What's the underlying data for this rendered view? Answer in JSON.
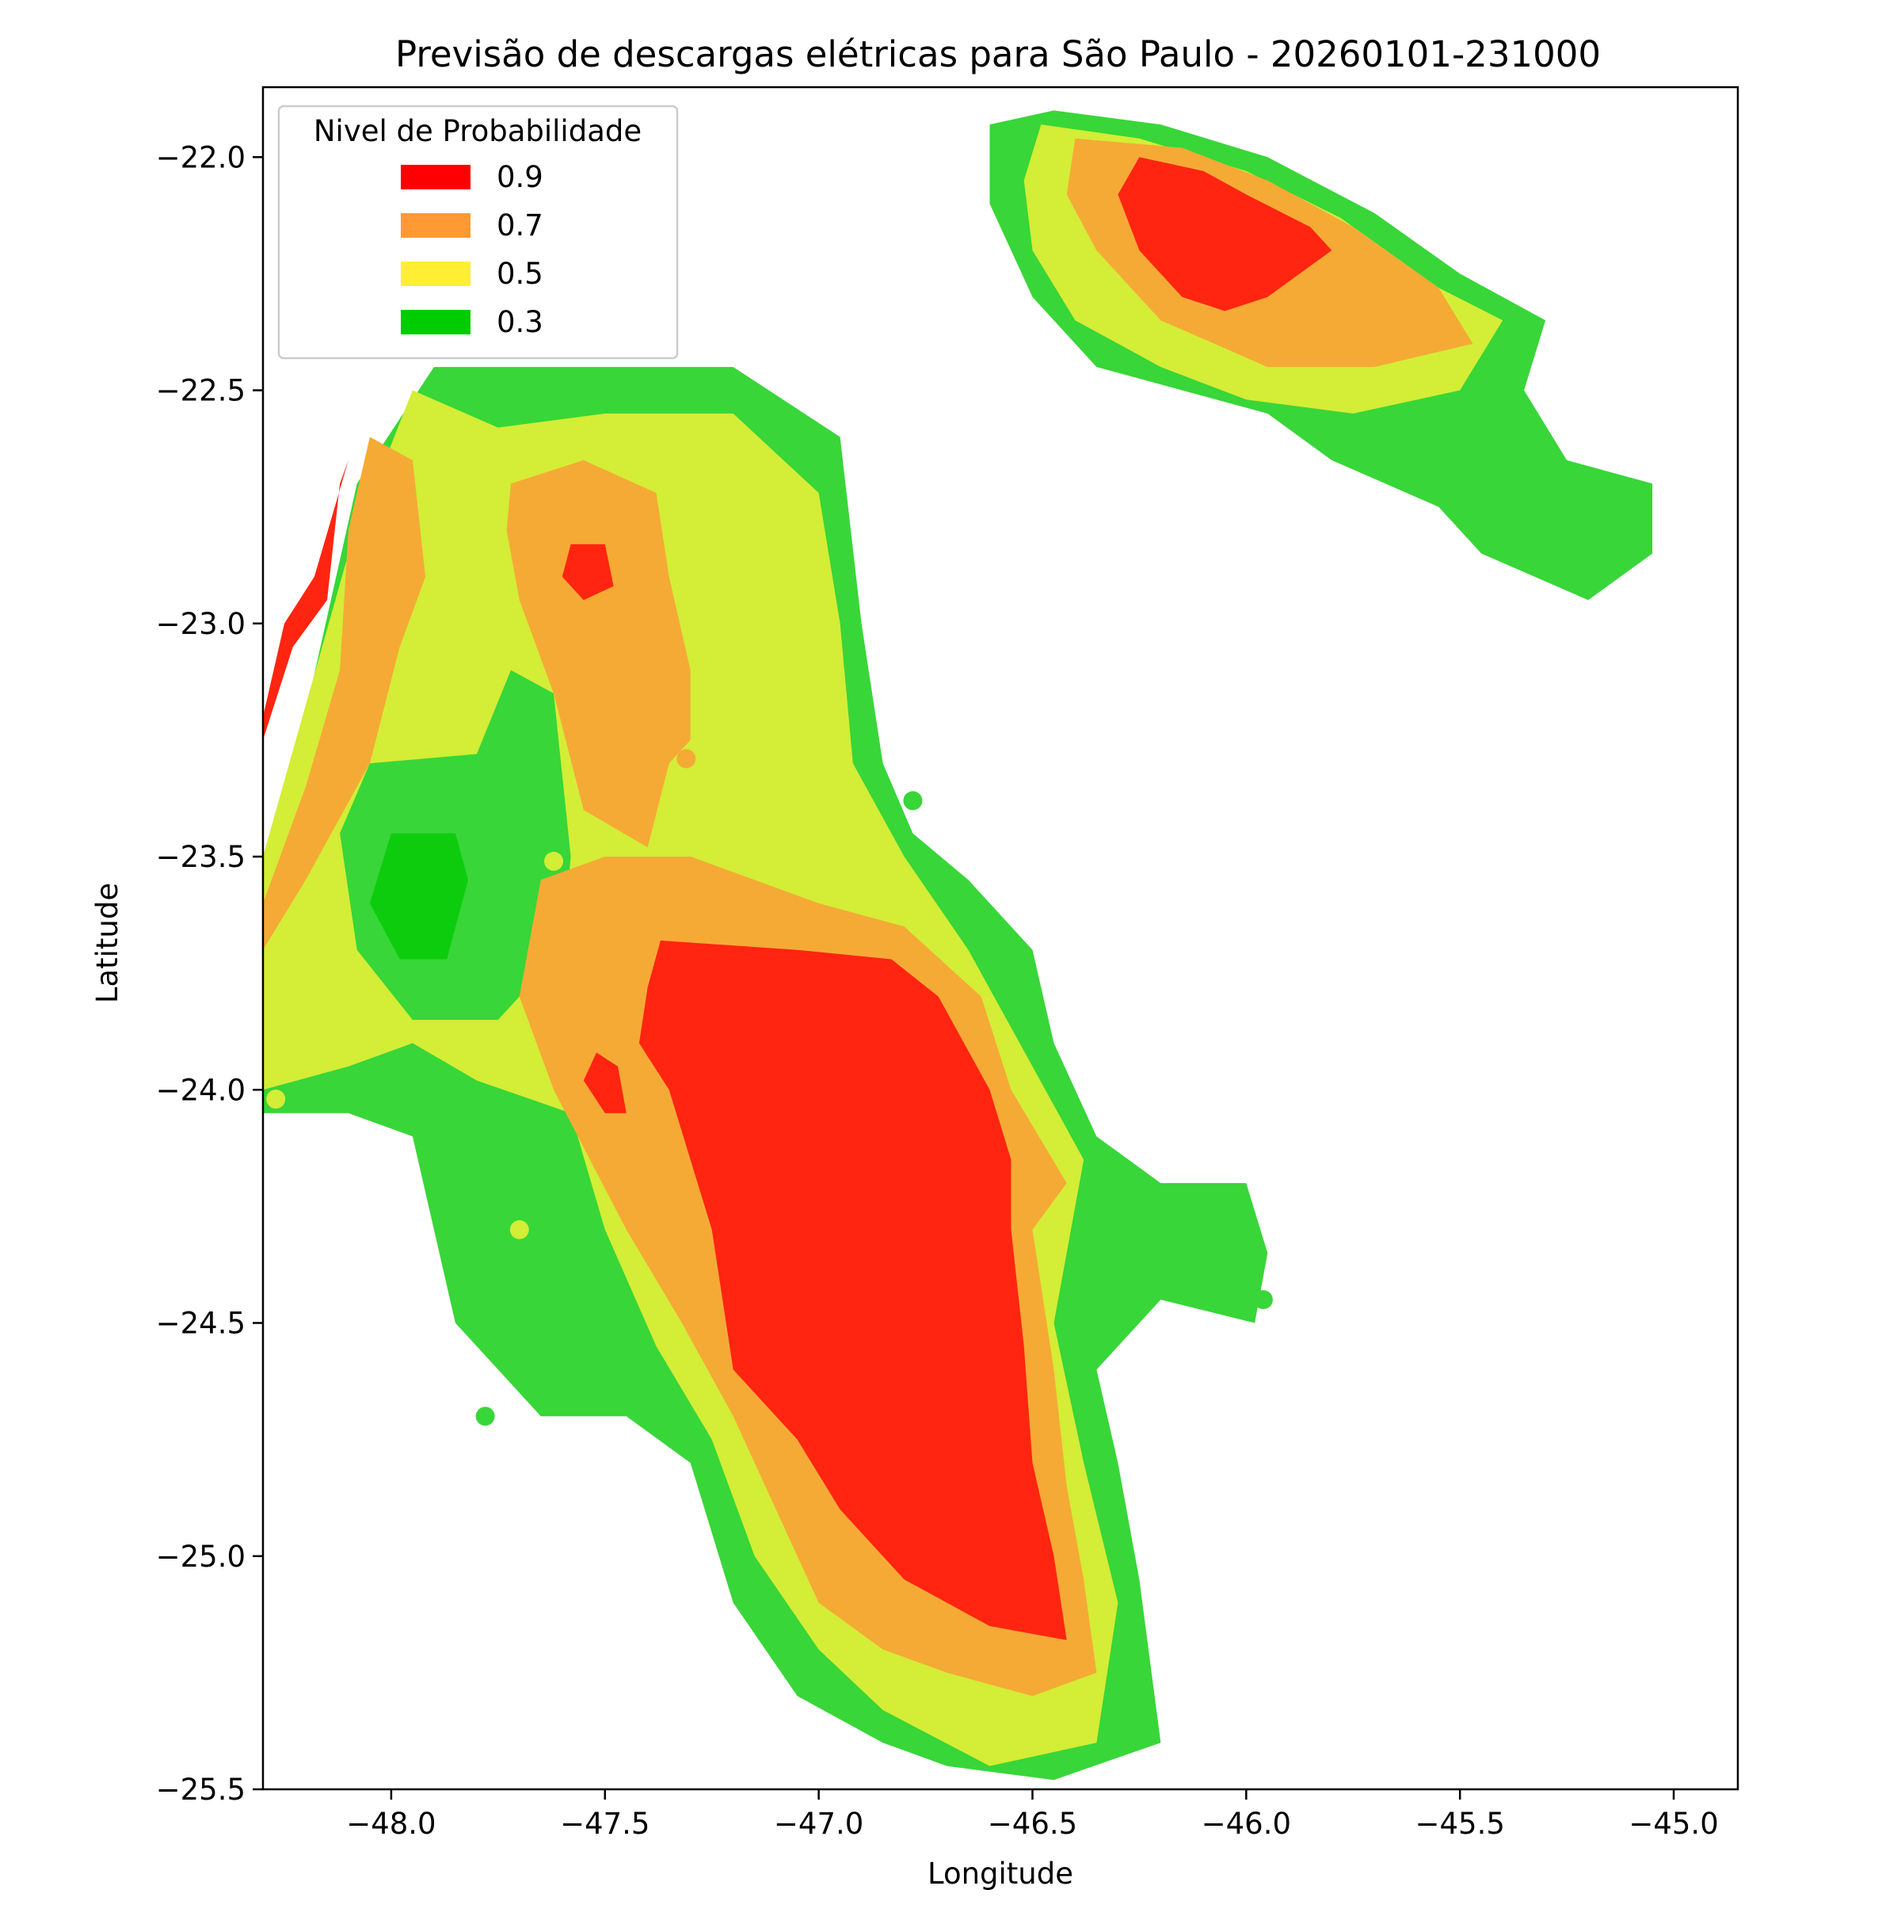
{
  "chart_data": {
    "type": "heatmap",
    "subtype": "filled-contour-map",
    "title": "Previsão de descargas elétricas para São Paulo - 20260101-231000",
    "xlabel": "Longitude",
    "ylabel": "Latitude",
    "xlim": [
      -48.3,
      -44.85
    ],
    "ylim": [
      -25.5,
      -21.85
    ],
    "xticks": [
      -48.0,
      -47.5,
      -47.0,
      -46.5,
      -46.0,
      -45.5,
      -45.0
    ],
    "xtick_labels": [
      "−48.0",
      "−47.5",
      "−47.0",
      "−46.5",
      "−46.0",
      "−45.5",
      "−45.0"
    ],
    "yticks": [
      -22.0,
      -22.5,
      -23.0,
      -23.5,
      -24.0,
      -24.5,
      -25.0,
      -25.5
    ],
    "ytick_labels": [
      "−22.0",
      "−22.5",
      "−23.0",
      "−23.5",
      "−24.0",
      "−24.5",
      "−25.0",
      "−25.5"
    ],
    "grid": false,
    "legend": {
      "title": "Nivel de Probabilidade",
      "placement": "top-left",
      "entries": [
        {
          "label": "0.9",
          "color": "#ff0000"
        },
        {
          "label": "0.7",
          "color": "#ff9933"
        },
        {
          "label": "0.5",
          "color": "#ffee33"
        },
        {
          "label": "0.3",
          "color": "#00cc00"
        }
      ]
    },
    "fill_colors": {
      "green": "#38d638",
      "dark_green": "#0dcc0d",
      "yellow": "#d4ed36",
      "orange": "#f5aa36",
      "red": "#ff2510"
    },
    "regions": [
      {
        "name": "south-green",
        "level": "green",
        "points": [
          [
            -48.3,
            -23.6
          ],
          [
            -48.08,
            -22.7
          ],
          [
            -47.9,
            -22.45
          ],
          [
            -47.55,
            -22.45
          ],
          [
            -47.2,
            -22.45
          ],
          [
            -46.95,
            -22.6
          ],
          [
            -46.9,
            -23.0
          ],
          [
            -46.85,
            -23.3
          ],
          [
            -46.78,
            -23.45
          ],
          [
            -46.65,
            -23.55
          ],
          [
            -46.5,
            -23.7
          ],
          [
            -46.45,
            -23.9
          ],
          [
            -46.35,
            -24.1
          ],
          [
            -46.2,
            -24.2
          ],
          [
            -46.0,
            -24.2
          ],
          [
            -45.95,
            -24.35
          ],
          [
            -45.98,
            -24.5
          ],
          [
            -46.2,
            -24.45
          ],
          [
            -46.35,
            -24.6
          ],
          [
            -46.3,
            -24.8
          ],
          [
            -46.25,
            -25.05
          ],
          [
            -46.2,
            -25.4
          ],
          [
            -46.45,
            -25.48
          ],
          [
            -46.7,
            -25.45
          ],
          [
            -46.85,
            -25.4
          ],
          [
            -47.05,
            -25.3
          ],
          [
            -47.2,
            -25.1
          ],
          [
            -47.3,
            -24.8
          ],
          [
            -47.45,
            -24.7
          ],
          [
            -47.65,
            -24.7
          ],
          [
            -47.85,
            -24.5
          ],
          [
            -47.9,
            -24.3
          ],
          [
            -47.95,
            -24.1
          ],
          [
            -48.1,
            -24.05
          ],
          [
            -48.3,
            -24.05
          ]
        ]
      },
      {
        "name": "south-yellow",
        "level": "yellow",
        "points": [
          [
            -48.3,
            -23.5
          ],
          [
            -48.1,
            -22.85
          ],
          [
            -47.95,
            -22.5
          ],
          [
            -47.75,
            -22.58
          ],
          [
            -47.5,
            -22.55
          ],
          [
            -47.2,
            -22.55
          ],
          [
            -47.0,
            -22.72
          ],
          [
            -46.95,
            -23.0
          ],
          [
            -46.92,
            -23.3
          ],
          [
            -46.8,
            -23.5
          ],
          [
            -46.65,
            -23.7
          ],
          [
            -46.5,
            -23.95
          ],
          [
            -46.38,
            -24.15
          ],
          [
            -46.45,
            -24.5
          ],
          [
            -46.38,
            -24.8
          ],
          [
            -46.3,
            -25.1
          ],
          [
            -46.35,
            -25.4
          ],
          [
            -46.6,
            -25.45
          ],
          [
            -46.85,
            -25.33
          ],
          [
            -47.0,
            -25.2
          ],
          [
            -47.15,
            -25.0
          ],
          [
            -47.25,
            -24.75
          ],
          [
            -47.38,
            -24.55
          ],
          [
            -47.5,
            -24.3
          ],
          [
            -47.58,
            -24.05
          ],
          [
            -47.8,
            -23.98
          ],
          [
            -47.95,
            -23.9
          ],
          [
            -48.1,
            -23.95
          ],
          [
            -48.3,
            -24.0
          ]
        ]
      },
      {
        "name": "west-green-pocket",
        "level": "green",
        "points": [
          [
            -48.05,
            -23.3
          ],
          [
            -47.8,
            -23.28
          ],
          [
            -47.72,
            -23.1
          ],
          [
            -47.62,
            -23.15
          ],
          [
            -47.58,
            -23.5
          ],
          [
            -47.6,
            -23.7
          ],
          [
            -47.75,
            -23.85
          ],
          [
            -47.95,
            -23.85
          ],
          [
            -48.08,
            -23.7
          ],
          [
            -48.12,
            -23.45
          ]
        ]
      },
      {
        "name": "west-dark-green",
        "level": "dark_green",
        "points": [
          [
            -48.0,
            -23.45
          ],
          [
            -47.85,
            -23.45
          ],
          [
            -47.82,
            -23.55
          ],
          [
            -47.87,
            -23.72
          ],
          [
            -47.98,
            -23.72
          ],
          [
            -48.05,
            -23.6
          ]
        ]
      },
      {
        "name": "west-orange",
        "level": "orange",
        "points": [
          [
            -48.3,
            -23.6
          ],
          [
            -48.2,
            -23.35
          ],
          [
            -48.12,
            -23.1
          ],
          [
            -48.1,
            -22.8
          ],
          [
            -48.05,
            -22.6
          ],
          [
            -47.95,
            -22.65
          ],
          [
            -47.92,
            -22.9
          ],
          [
            -47.98,
            -23.05
          ],
          [
            -48.05,
            -23.3
          ],
          [
            -48.2,
            -23.55
          ],
          [
            -48.3,
            -23.7
          ]
        ]
      },
      {
        "name": "west-red",
        "level": "red",
        "points": [
          [
            -48.3,
            -23.25
          ],
          [
            -48.23,
            -23.05
          ],
          [
            -48.15,
            -22.95
          ],
          [
            -48.12,
            -22.7
          ],
          [
            -48.1,
            -22.65
          ],
          [
            -48.18,
            -22.9
          ],
          [
            -48.25,
            -23.0
          ],
          [
            -48.3,
            -23.2
          ]
        ]
      },
      {
        "name": "center-north-orange",
        "level": "orange",
        "points": [
          [
            -47.72,
            -22.7
          ],
          [
            -47.55,
            -22.65
          ],
          [
            -47.38,
            -22.72
          ],
          [
            -47.35,
            -22.9
          ],
          [
            -47.3,
            -23.1
          ],
          [
            -47.3,
            -23.25
          ],
          [
            -47.35,
            -23.3
          ],
          [
            -47.4,
            -23.48
          ],
          [
            -47.55,
            -23.4
          ],
          [
            -47.62,
            -23.15
          ],
          [
            -47.7,
            -22.95
          ],
          [
            -47.73,
            -22.8
          ]
        ]
      },
      {
        "name": "center-north-red",
        "level": "red",
        "points": [
          [
            -47.58,
            -22.83
          ],
          [
            -47.5,
            -22.83
          ],
          [
            -47.48,
            -22.92
          ],
          [
            -47.55,
            -22.95
          ],
          [
            -47.6,
            -22.9
          ]
        ]
      },
      {
        "name": "main-orange",
        "level": "orange",
        "points": [
          [
            -47.65,
            -23.55
          ],
          [
            -47.5,
            -23.5
          ],
          [
            -47.3,
            -23.5
          ],
          [
            -47.0,
            -23.6
          ],
          [
            -46.8,
            -23.65
          ],
          [
            -46.62,
            -23.8
          ],
          [
            -46.55,
            -24.0
          ],
          [
            -46.42,
            -24.2
          ],
          [
            -46.5,
            -24.3
          ],
          [
            -46.45,
            -24.6
          ],
          [
            -46.42,
            -24.85
          ],
          [
            -46.38,
            -25.05
          ],
          [
            -46.35,
            -25.25
          ],
          [
            -46.5,
            -25.3
          ],
          [
            -46.7,
            -25.25
          ],
          [
            -46.85,
            -25.2
          ],
          [
            -47.0,
            -25.1
          ],
          [
            -47.1,
            -24.9
          ],
          [
            -47.2,
            -24.7
          ],
          [
            -47.32,
            -24.5
          ],
          [
            -47.45,
            -24.3
          ],
          [
            -47.62,
            -24.0
          ],
          [
            -47.7,
            -23.8
          ]
        ]
      },
      {
        "name": "main-red",
        "level": "red",
        "points": [
          [
            -47.37,
            -23.68
          ],
          [
            -47.05,
            -23.7
          ],
          [
            -46.83,
            -23.72
          ],
          [
            -46.72,
            -23.8
          ],
          [
            -46.6,
            -24.0
          ],
          [
            -46.55,
            -24.15
          ],
          [
            -46.55,
            -24.3
          ],
          [
            -46.52,
            -24.55
          ],
          [
            -46.5,
            -24.8
          ],
          [
            -46.45,
            -25.0
          ],
          [
            -46.42,
            -25.18
          ],
          [
            -46.6,
            -25.15
          ],
          [
            -46.8,
            -25.05
          ],
          [
            -46.95,
            -24.9
          ],
          [
            -47.05,
            -24.75
          ],
          [
            -47.2,
            -24.6
          ],
          [
            -47.25,
            -24.3
          ],
          [
            -47.35,
            -24.0
          ],
          [
            -47.42,
            -23.9
          ],
          [
            -47.4,
            -23.78
          ]
        ]
      },
      {
        "name": "main-red-small",
        "level": "red",
        "points": [
          [
            -47.52,
            -23.92
          ],
          [
            -47.47,
            -23.95
          ],
          [
            -47.45,
            -24.05
          ],
          [
            -47.5,
            -24.05
          ],
          [
            -47.55,
            -23.98
          ]
        ]
      },
      {
        "name": "north-green",
        "level": "green",
        "points": [
          [
            -46.45,
            -21.9
          ],
          [
            -46.2,
            -21.93
          ],
          [
            -45.95,
            -22.0
          ],
          [
            -45.7,
            -22.12
          ],
          [
            -45.5,
            -22.25
          ],
          [
            -45.3,
            -22.35
          ],
          [
            -45.35,
            -22.5
          ],
          [
            -45.25,
            -22.65
          ],
          [
            -45.05,
            -22.7
          ],
          [
            -45.05,
            -22.85
          ],
          [
            -45.2,
            -22.95
          ],
          [
            -45.45,
            -22.85
          ],
          [
            -45.55,
            -22.75
          ],
          [
            -45.8,
            -22.65
          ],
          [
            -45.95,
            -22.55
          ],
          [
            -46.15,
            -22.5
          ],
          [
            -46.35,
            -22.45
          ],
          [
            -46.5,
            -22.3
          ],
          [
            -46.6,
            -22.1
          ],
          [
            -46.6,
            -21.93
          ]
        ]
      },
      {
        "name": "north-yellow",
        "level": "yellow",
        "points": [
          [
            -46.48,
            -21.93
          ],
          [
            -46.25,
            -21.96
          ],
          [
            -46.0,
            -22.03
          ],
          [
            -45.78,
            -22.13
          ],
          [
            -45.55,
            -22.28
          ],
          [
            -45.4,
            -22.35
          ],
          [
            -45.5,
            -22.5
          ],
          [
            -45.75,
            -22.55
          ],
          [
            -46.0,
            -22.52
          ],
          [
            -46.2,
            -22.45
          ],
          [
            -46.4,
            -22.35
          ],
          [
            -46.5,
            -22.2
          ],
          [
            -46.52,
            -22.05
          ]
        ]
      },
      {
        "name": "north-orange",
        "level": "orange",
        "points": [
          [
            -46.4,
            -21.96
          ],
          [
            -46.15,
            -21.98
          ],
          [
            -45.95,
            -22.05
          ],
          [
            -45.75,
            -22.15
          ],
          [
            -45.55,
            -22.28
          ],
          [
            -45.47,
            -22.4
          ],
          [
            -45.7,
            -22.45
          ],
          [
            -45.95,
            -22.45
          ],
          [
            -46.2,
            -22.35
          ],
          [
            -46.35,
            -22.2
          ],
          [
            -46.42,
            -22.08
          ]
        ]
      },
      {
        "name": "north-red",
        "level": "red",
        "points": [
          [
            -46.25,
            -22.0
          ],
          [
            -46.1,
            -22.03
          ],
          [
            -46.0,
            -22.08
          ],
          [
            -45.85,
            -22.15
          ],
          [
            -45.8,
            -22.2
          ],
          [
            -45.95,
            -22.3
          ],
          [
            -46.05,
            -22.33
          ],
          [
            -46.15,
            -22.3
          ],
          [
            -46.25,
            -22.2
          ],
          [
            -46.3,
            -22.08
          ]
        ]
      }
    ],
    "dots": [
      {
        "lon": -46.78,
        "lat": -23.38,
        "level": "green"
      },
      {
        "lon": -47.62,
        "lat": -23.51,
        "level": "yellow"
      },
      {
        "lon": -48.14,
        "lat": -23.87,
        "level": "yellow"
      },
      {
        "lon": -48.27,
        "lat": -24.02,
        "level": "yellow"
      },
      {
        "lon": -47.7,
        "lat": -24.3,
        "level": "yellow"
      },
      {
        "lon": -47.78,
        "lat": -24.7,
        "level": "green"
      },
      {
        "lon": -45.96,
        "lat": -24.45,
        "level": "green"
      },
      {
        "lon": -47.31,
        "lat": -23.29,
        "level": "orange"
      }
    ]
  }
}
